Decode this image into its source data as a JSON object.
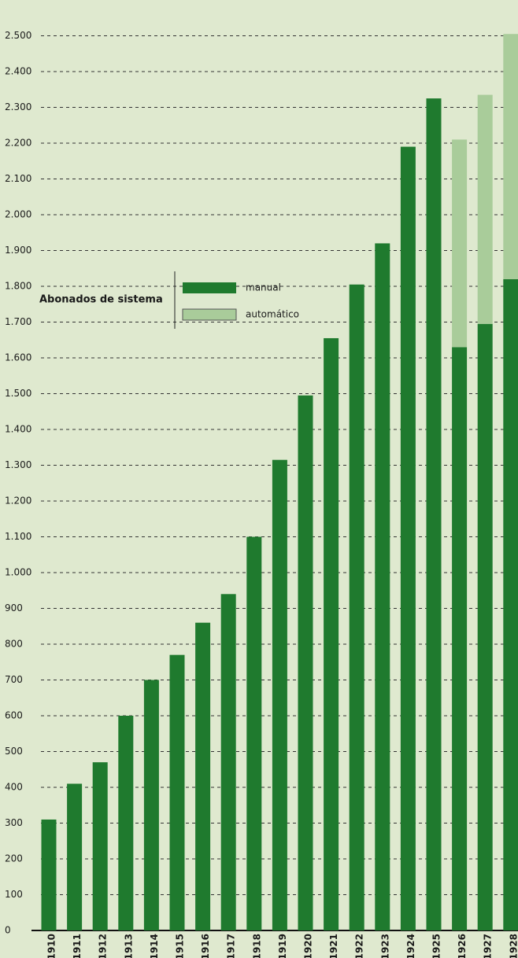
{
  "chart_data": {
    "type": "stacked-bar",
    "legend_title": "Abonados de sistema",
    "categories": [
      "1910",
      "1911",
      "1912",
      "1913",
      "1914",
      "1915",
      "1916",
      "1917",
      "1918",
      "1919",
      "1920",
      "1921",
      "1922",
      "1923",
      "1924",
      "1925",
      "1926",
      "1927",
      "1928"
    ],
    "series": [
      {
        "name": "manual",
        "color": "#1f7a2e",
        "values": [
          310,
          410,
          470,
          600,
          700,
          770,
          860,
          940,
          1100,
          1315,
          1495,
          1655,
          1805,
          1920,
          2190,
          2325,
          1630,
          1695,
          1820
        ]
      },
      {
        "name": "automático",
        "color": "#a9cc9a",
        "values": [
          null,
          null,
          null,
          null,
          null,
          null,
          null,
          null,
          null,
          null,
          null,
          null,
          null,
          null,
          null,
          null,
          580,
          640,
          685
        ]
      }
    ],
    "ylim": [
      0,
      2600
    ],
    "yticks": [
      0,
      100,
      200,
      300,
      400,
      500,
      600,
      700,
      800,
      900,
      {
        "value": 1000,
        "label": "1.000"
      },
      {
        "value": 1100,
        "label": "1.100"
      },
      {
        "value": 1200,
        "label": "1.200"
      },
      {
        "value": 1300,
        "label": "1.300"
      },
      {
        "value": 1400,
        "label": "1.400"
      },
      {
        "value": 1500,
        "label": "1.500"
      },
      {
        "value": 1600,
        "label": "1.600"
      },
      {
        "value": 1700,
        "label": "1.700"
      },
      {
        "value": 1800,
        "label": "1.800"
      },
      {
        "value": 1900,
        "label": "1.900"
      },
      {
        "value": 2000,
        "label": "2.000"
      },
      {
        "value": 2100,
        "label": "2.100"
      },
      {
        "value": 2200,
        "label": "2.200"
      },
      {
        "value": 2300,
        "label": "2.300"
      },
      {
        "value": 2400,
        "label": "2.400"
      },
      {
        "value": 2500,
        "label": "2.500"
      }
    ],
    "grid": true
  }
}
